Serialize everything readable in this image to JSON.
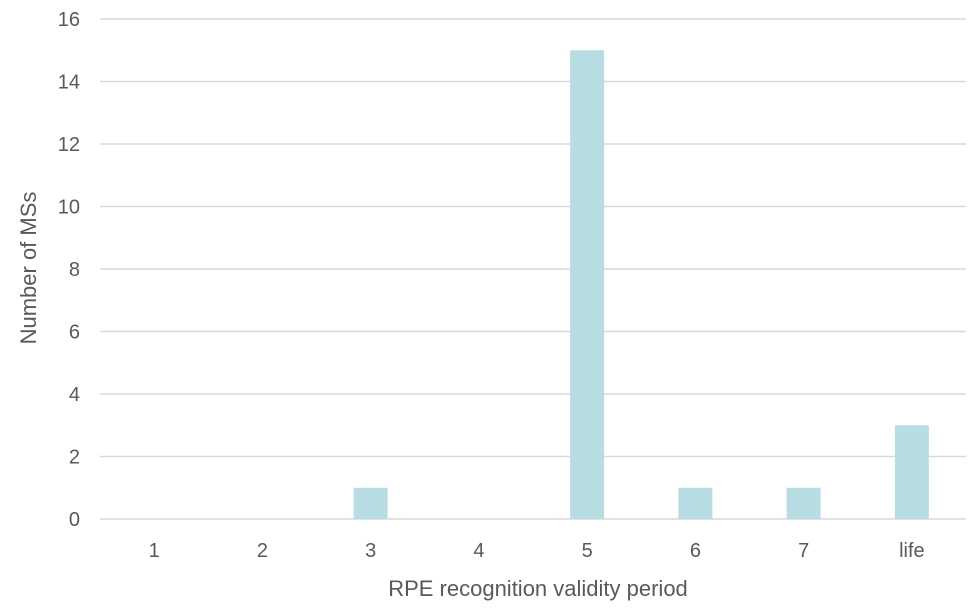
{
  "chart_data": {
    "type": "bar",
    "title": "",
    "xlabel": "RPE recognition validity period",
    "ylabel": "Number of MSs",
    "categories": [
      "1",
      "2",
      "3",
      "4",
      "5",
      "6",
      "7",
      "life"
    ],
    "values": [
      0,
      0,
      1,
      0,
      15,
      1,
      1,
      3
    ],
    "ylim": [
      0,
      16
    ],
    "yticks": [
      0,
      2,
      4,
      6,
      8,
      10,
      12,
      14,
      16
    ],
    "grid": "horizontal",
    "legend": "none",
    "bar_color": "#b7dde2"
  }
}
